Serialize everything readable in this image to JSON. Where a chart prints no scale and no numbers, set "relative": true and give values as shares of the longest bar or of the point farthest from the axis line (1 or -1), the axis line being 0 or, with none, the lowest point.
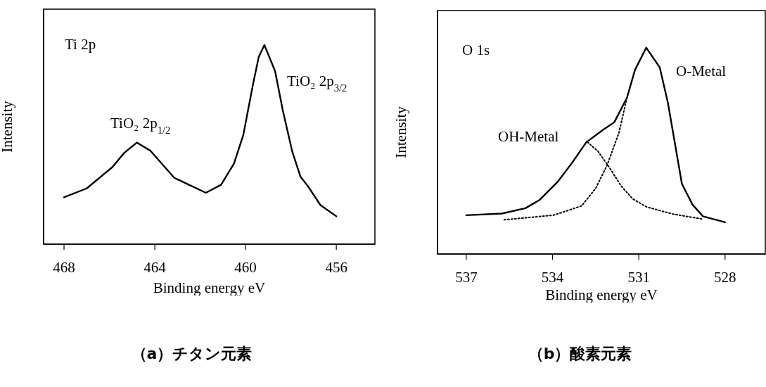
{
  "chart_data": [
    {
      "type": "line",
      "title": "（a）チタン元素",
      "xlabel": "Binding energy eV",
      "ylabel": "Intensity",
      "relative": true,
      "xlim": [
        468.9,
        454.3
      ],
      "xticks": [
        468,
        464,
        460,
        456
      ],
      "marker": "none",
      "annotations": [
        "Ti 2p",
        "TiO₂ 2p$_{1/2}$",
        "TiO₂ 2p$_{3/2}$"
      ],
      "series": [
        {
          "color": "#000000",
          "line_style": "solid",
          "x": [
            468.0,
            467.0,
            465.87,
            465.35,
            464.79,
            464.2,
            463.14,
            461.75,
            461.08,
            460.51,
            460.1,
            459.68,
            459.42,
            459.17,
            458.7,
            458.35,
            457.94,
            457.58,
            457.22,
            456.7,
            456.0
          ],
          "values": [
            0.235,
            0.28,
            0.387,
            0.458,
            0.51,
            0.47,
            0.333,
            0.258,
            0.298,
            0.405,
            0.548,
            0.798,
            0.94,
            1.0,
            0.869,
            0.667,
            0.464,
            0.339,
            0.286,
            0.196,
            0.14
          ]
        }
      ]
    },
    {
      "type": "line",
      "title": "（b）酸素元素",
      "xlabel": "Binding energy eV",
      "ylabel": "Intensity",
      "relative": true,
      "xlim": [
        538,
        526.6
      ],
      "xticks": [
        537,
        534,
        531,
        528
      ],
      "marker": "none",
      "annotations": [
        "O 1s",
        "OH-Metal",
        "O-Metal"
      ],
      "series": [
        {
          "color": "#000000",
          "line_style": "solid",
          "x": [
            537.0,
            535.76,
            534.94,
            534.45,
            533.81,
            533.32,
            532.83,
            532.26,
            531.85,
            531.41,
            531.13,
            530.74,
            530.27,
            529.99,
            529.5,
            529.13,
            528.77,
            528.0
          ],
          "values": [
            0.188,
            0.196,
            0.222,
            0.262,
            0.352,
            0.442,
            0.541,
            0.6,
            0.639,
            0.758,
            0.893,
            1.0,
            0.904,
            0.735,
            0.34,
            0.239,
            0.183,
            0.154
          ]
        },
        {
          "color": "#000000",
          "line_style": "dotted",
          "x": [
            535.68,
            533.97,
            532.99,
            532.5,
            532.1,
            531.69,
            531.41
          ],
          "values": [
            0.166,
            0.188,
            0.233,
            0.318,
            0.431,
            0.588,
            0.758
          ]
        },
        {
          "color": "#000000",
          "line_style": "dotted",
          "x": [
            532.79,
            532.42,
            532.02,
            531.61,
            531.21,
            530.72,
            529.83,
            528.77
          ],
          "values": [
            0.543,
            0.498,
            0.419,
            0.329,
            0.267,
            0.228,
            0.194,
            0.169
          ]
        }
      ]
    }
  ]
}
